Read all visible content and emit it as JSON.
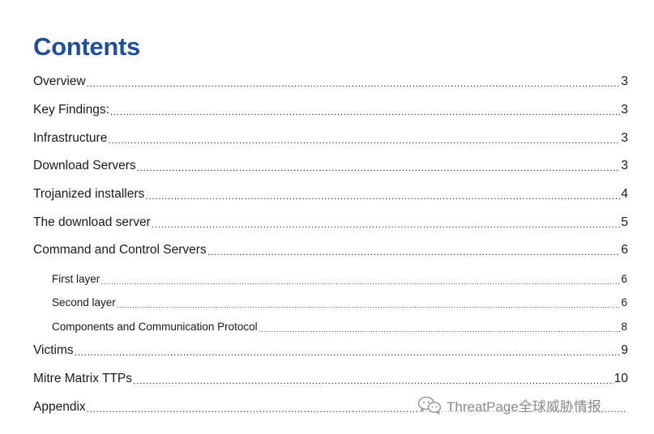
{
  "title": "Contents",
  "entries": [
    {
      "label": "Overview",
      "page": "3"
    },
    {
      "label": "Key Findings:",
      "page": "3"
    },
    {
      "label": "Infrastructure",
      "page": "3"
    },
    {
      "label": "Download Servers",
      "page": "3"
    },
    {
      "label": "Trojanized installers",
      "page": "4"
    },
    {
      "label": "The download server",
      "page": "5"
    },
    {
      "label": "Command and Control Servers",
      "page": "6"
    },
    {
      "label": "First layer",
      "page": "6"
    },
    {
      "label": "Second layer",
      "page": "6"
    },
    {
      "label": "Components and Communication Protocol",
      "page": "8"
    },
    {
      "label": "Victims",
      "page": "9"
    },
    {
      "label": "Mitre Matrix TTPs",
      "page": "10"
    },
    {
      "label": "Appendix",
      "page": ""
    }
  ],
  "watermark": {
    "text": "ThreatPage全球威胁情报",
    "icon": "wechat-icon"
  },
  "colors": {
    "title": "#1f4e9c",
    "text": "#1a1a1a",
    "watermark": "#8a8a8a"
  }
}
